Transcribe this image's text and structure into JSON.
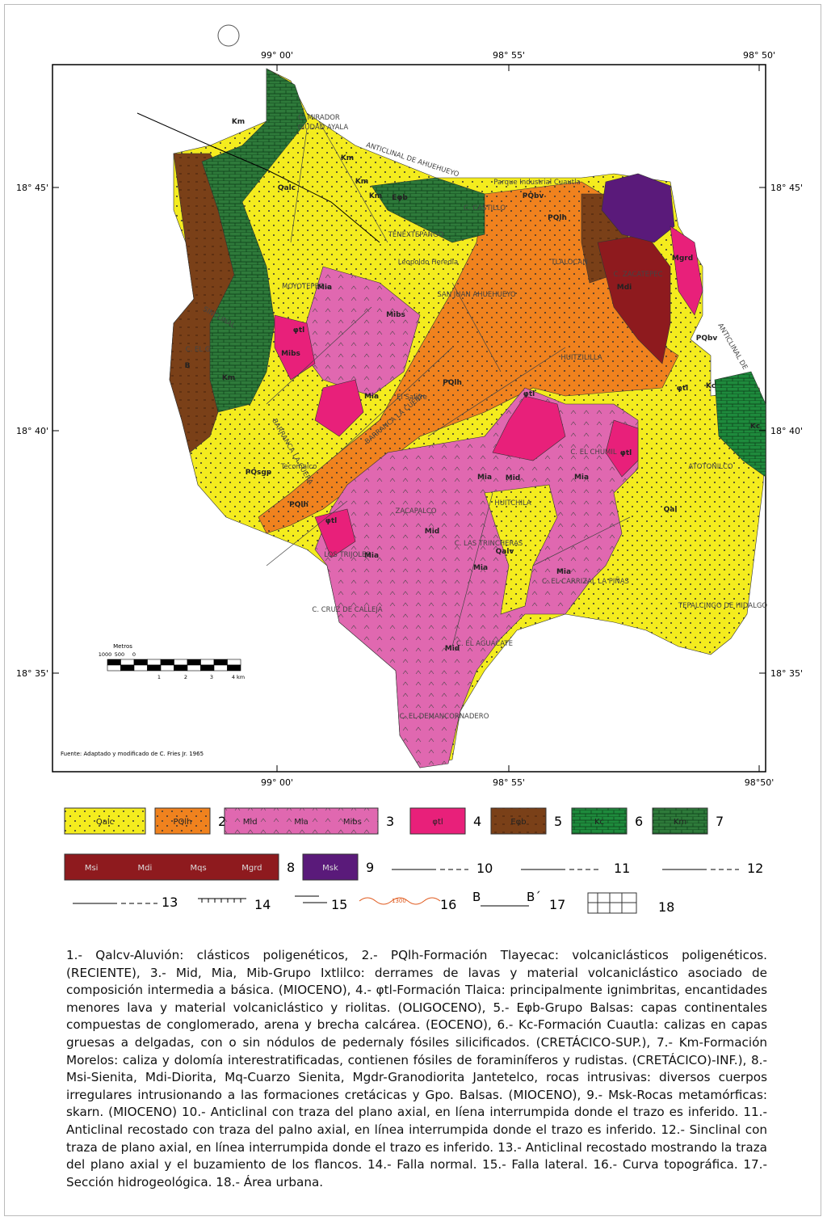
{
  "map": {
    "lon_top": [
      "99° 00'",
      "98° 55'",
      "98° 50'"
    ],
    "lon_bottom": [
      "99° 00'",
      "98° 55'",
      "98°50'"
    ],
    "lat_left": [
      "18° 45'",
      "18° 40'",
      "18° 35'"
    ],
    "lat_right": [
      "18° 45'",
      "18° 40'",
      "18° 35'"
    ],
    "places": [
      "C. MIRADOR",
      "CIUDAD AYALA",
      "ANTICLINAL DE AHUEHUEYO",
      "Parque Industrial Cuautla",
      "C. CASTILLO",
      "TENEXTEPANGO",
      "Leopoldo Heredia",
      "SAN JUAN AHUEHUEYO",
      "MOYOTEPEC",
      "TLALOCAN",
      "C. ZACATEPEC",
      "HUITZILILLA",
      "El Salitre",
      "BARRANCA LA CUERA",
      "C. EL CHUMIL",
      "ATOTONILCO",
      "HUITCHILA",
      "ZACAPALCO",
      "LOS TRIJOLES",
      "C. LAS TRINCHERAS",
      "C. EL CARRIZAL LA PIÑAS",
      "TEPALCINGO DE HIDALGO",
      "C. CRUZ DE CALLEJA",
      "C. EL AGUACATE",
      "C. EL DEMANCORNADERO",
      "Tecomalco",
      "C. EL G",
      "SINCLINAL",
      "BARRANCA LA CUERA",
      "ANTICLINAL DE"
    ],
    "units": [
      "Km",
      "Qalc",
      "Km",
      "Km",
      "Eφb",
      "PQbv",
      "PQlh",
      "Mia",
      "Mibs",
      "Mibs",
      "φtl",
      "Mia",
      "PQlh",
      "φtl",
      "Mia",
      "Mid",
      "Mia",
      "Mia",
      "Mid",
      "Mia",
      "Mia",
      "Mid",
      "Qalv",
      "Qal",
      "PQsgp",
      "PQlh",
      "φtl",
      "Mgrd",
      "Km",
      "Kc",
      "Kc",
      "Km",
      "Mdi",
      "PQbv",
      "B",
      "φtl",
      "φtl"
    ],
    "source": "Fuente: Adaptado y modificado de C. Fries Jr. 1965",
    "scale": {
      "title": "Metros",
      "labels": [
        "1000",
        "500",
        "0",
        "1",
        "2",
        "3",
        "4 km"
      ]
    }
  },
  "legend": {
    "items": [
      {
        "labels": [
          "Qalc"
        ],
        "number": "1",
        "color": "#f4ec1e"
      },
      {
        "labels": [
          "PQlh"
        ],
        "number": "2",
        "color": "#f0821e"
      },
      {
        "labels": [
          "Mid",
          "Mia",
          "Mibs"
        ],
        "number": "3",
        "color": "#e068b0"
      },
      {
        "labels": [
          "φtl"
        ],
        "number": "4",
        "color": "#e8207a"
      },
      {
        "labels": [
          "Eφb"
        ],
        "number": "5",
        "color": "#7a4018"
      },
      {
        "labels": [
          "Kc"
        ],
        "number": "6",
        "color": "#1e8a3c"
      },
      {
        "labels": [
          "Km"
        ],
        "number": "7",
        "color": "#2e7a3a"
      },
      {
        "labels": [
          "Msi",
          "Mdi",
          "Mqs",
          "Mgrd"
        ],
        "number": "8",
        "color": "#8e1a1e"
      },
      {
        "labels": [
          "Msk"
        ],
        "number": "9",
        "color": "#5a1a7a"
      }
    ],
    "symbols": [
      {
        "number": "10"
      },
      {
        "number": "11"
      },
      {
        "number": "12"
      },
      {
        "number": "13"
      },
      {
        "number": "14"
      },
      {
        "number": "15"
      },
      {
        "number": "16",
        "text": "1300"
      },
      {
        "number": "17",
        "text": [
          "B",
          "B´"
        ]
      },
      {
        "number": "18"
      }
    ]
  },
  "description": "1.- Qalcv-Aluvión: clásticos poligenéticos, 2.- PQlh-Formación Tlayecac: volcaniclásticos poligenéticos. (RECIENTE), 3.- Mid, Mia, Mib-Grupo Ixtlilco: derrames de lavas y material volcaniclástico asociado de composición intermedia a básica. (MIOCENO), 4.- φtl-Formación Tlaica: principalmente ignimbritas, encantidades menores lava y material volcaniclástico y riolitas. (OLIGOCENO), 5.- Eφb-Grupo Balsas: capas continentales compuestas de conglomerado, arena y brecha calcárea. (EOCENO), 6.- Kc-Formación Cuautla: calizas en capas gruesas a delgadas, con o sin nódulos de pedernaly fósiles silicificados. (CRETÁCICO-SUP.), 7.- Km-Formación Morelos: caliza y dolomía interestratificadas, contienen fósiles de foraminíferos y rudistas. (CRETÁCICO)-INF.), 8.- Msi-Sienita, Mdi-Diorita, Mq-Cuarzo Sienita, Mgdr-Granodiorita Jantetelco, rocas intrusivas: diversos cuerpos irregulares intrusionando a las formaciones cretácicas y Gpo. Balsas. (MIOCENO), 9.- Msk-Rocas metamórficas: skarn. (MIOCENO) 10.- Anticlinal con traza del plano axial, en líena interrumpida donde el trazo es inferido. 11.- Anticlinal recostado con traza del palno axial, en línea interrumpida donde el trazo es inferido. 12.- Sinclinal con traza de plano axial, en línea interrumpida donde el trazo es inferido. 13.- Anticlinal recostado mostrando la traza del plano axial y el buzamiento de los flancos. 14.- Falla normal. 15.- Falla lateral. 16.- Curva topográfica. 17.- Sección hidrogeológica. 18.- Área urbana."
}
